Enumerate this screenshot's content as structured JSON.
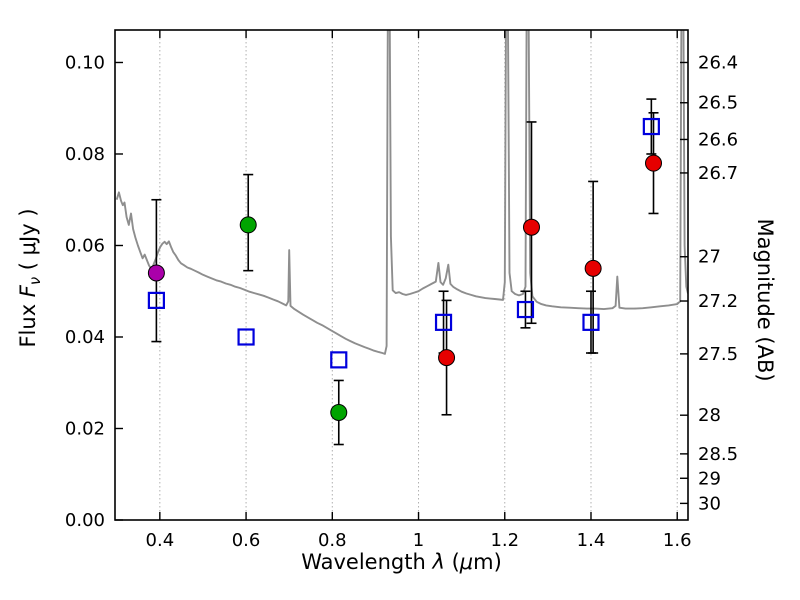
{
  "window": {
    "background": "#ffffff"
  },
  "chart_data": {
    "type": "line",
    "title": "",
    "xlabel_parts": {
      "prefix": "Wavelength  ",
      "lambda": "λ",
      "open": " (",
      "mu": "μ",
      "close": "m)"
    },
    "ylabel_left_parts": {
      "prefix": "Flux  ",
      "symbol": "F",
      "subscript": "ν",
      "suffix": "  ( μJy )"
    },
    "ylabel_right": "Magnitude (AB)",
    "mag_flux_zeropoint_ab": 23.9,
    "x_range": [
      0.296,
      1.625
    ],
    "y_range_flux": [
      0.0,
      0.1071
    ],
    "grid": {
      "vertical_dotted": true,
      "color": "#b0b0b0"
    },
    "axes_color": "#000000",
    "error_bar_color": "#000000",
    "x_ticks": [
      {
        "v": 0.4,
        "label": "0.4"
      },
      {
        "v": 0.6,
        "label": "0.6"
      },
      {
        "v": 0.8,
        "label": "0.8"
      },
      {
        "v": 1.0,
        "label": "1"
      },
      {
        "v": 1.2,
        "label": "1.2"
      },
      {
        "v": 1.4,
        "label": "1.4"
      },
      {
        "v": 1.6,
        "label": "1.6"
      }
    ],
    "y_ticks_flux": [
      {
        "v": 0.0,
        "label": "0.00"
      },
      {
        "v": 0.02,
        "label": "0.02"
      },
      {
        "v": 0.04,
        "label": "0.04"
      },
      {
        "v": 0.06,
        "label": "0.06"
      },
      {
        "v": 0.08,
        "label": "0.08"
      },
      {
        "v": 0.1,
        "label": "0.10"
      }
    ],
    "y_ticks_magnitude": [
      {
        "m": 26.4,
        "label": "26.4"
      },
      {
        "m": 26.5,
        "label": "26.5"
      },
      {
        "m": 26.6,
        "label": "26.6"
      },
      {
        "m": 26.7,
        "label": "26.7"
      },
      {
        "m": 27.0,
        "label": "27"
      },
      {
        "m": 27.2,
        "label": "27.2"
      },
      {
        "m": 27.5,
        "label": "27.5"
      },
      {
        "m": 28.0,
        "label": "28"
      },
      {
        "m": 28.5,
        "label": "28.5"
      },
      {
        "m": 29.0,
        "label": "29"
      },
      {
        "m": 30.0,
        "label": "30"
      }
    ],
    "series": [
      {
        "name": "model-spectrum",
        "type": "line",
        "color": "#8e8e8e",
        "points": [
          [
            0.3,
            0.07
          ],
          [
            0.305,
            0.0716
          ],
          [
            0.31,
            0.0698
          ],
          [
            0.314,
            0.0688
          ],
          [
            0.318,
            0.0694
          ],
          [
            0.323,
            0.0662
          ],
          [
            0.328,
            0.0645
          ],
          [
            0.333,
            0.067
          ],
          [
            0.338,
            0.0636
          ],
          [
            0.343,
            0.0618
          ],
          [
            0.349,
            0.06
          ],
          [
            0.355,
            0.0585
          ],
          [
            0.36,
            0.0572
          ],
          [
            0.365,
            0.058
          ],
          [
            0.37,
            0.0568
          ],
          [
            0.375,
            0.0556
          ],
          [
            0.381,
            0.0548
          ],
          [
            0.386,
            0.056
          ],
          [
            0.391,
            0.0572
          ],
          [
            0.396,
            0.0586
          ],
          [
            0.401,
            0.0597
          ],
          [
            0.406,
            0.0604
          ],
          [
            0.411,
            0.0608
          ],
          [
            0.416,
            0.0603
          ],
          [
            0.421,
            0.0609
          ],
          [
            0.426,
            0.0597
          ],
          [
            0.431,
            0.0586
          ],
          [
            0.437,
            0.0578
          ],
          [
            0.443,
            0.0568
          ],
          [
            0.449,
            0.0561
          ],
          [
            0.456,
            0.0557
          ],
          [
            0.464,
            0.0552
          ],
          [
            0.472,
            0.0549
          ],
          [
            0.481,
            0.0545
          ],
          [
            0.49,
            0.0541
          ],
          [
            0.5,
            0.0536
          ],
          [
            0.51,
            0.0532
          ],
          [
            0.52,
            0.0528
          ],
          [
            0.531,
            0.0524
          ],
          [
            0.542,
            0.0521
          ],
          [
            0.553,
            0.0517
          ],
          [
            0.564,
            0.0514
          ],
          [
            0.575,
            0.051
          ],
          [
            0.586,
            0.0507
          ],
          [
            0.597,
            0.0503
          ],
          [
            0.608,
            0.0499
          ],
          [
            0.619,
            0.0496
          ],
          [
            0.63,
            0.0493
          ],
          [
            0.641,
            0.049
          ],
          [
            0.652,
            0.0486
          ],
          [
            0.663,
            0.0482
          ],
          [
            0.674,
            0.0478
          ],
          [
            0.685,
            0.0473
          ],
          [
            0.693,
            0.0469
          ],
          [
            0.698,
            0.0478
          ],
          [
            0.7,
            0.059
          ],
          [
            0.703,
            0.0468
          ],
          [
            0.712,
            0.0461
          ],
          [
            0.722,
            0.0455
          ],
          [
            0.732,
            0.0449
          ],
          [
            0.743,
            0.0443
          ],
          [
            0.754,
            0.0437
          ],
          [
            0.765,
            0.0431
          ],
          [
            0.776,
            0.0426
          ],
          [
            0.787,
            0.042
          ],
          [
            0.798,
            0.0414
          ],
          [
            0.809,
            0.0408
          ],
          [
            0.82,
            0.0402
          ],
          [
            0.831,
            0.0396
          ],
          [
            0.842,
            0.0391
          ],
          [
            0.853,
            0.0386
          ],
          [
            0.864,
            0.0382
          ],
          [
            0.875,
            0.0378
          ],
          [
            0.886,
            0.0374
          ],
          [
            0.897,
            0.037
          ],
          [
            0.908,
            0.0367
          ],
          [
            0.916,
            0.0365
          ],
          [
            0.922,
            0.0363
          ],
          [
            0.926,
            0.038
          ],
          [
            0.929,
            0.115
          ],
          [
            0.933,
            0.115
          ],
          [
            0.936,
            0.062
          ],
          [
            0.94,
            0.0502
          ],
          [
            0.947,
            0.0496
          ],
          [
            0.955,
            0.0498
          ],
          [
            0.963,
            0.0494
          ],
          [
            0.971,
            0.0492
          ],
          [
            0.98,
            0.0494
          ],
          [
            0.99,
            0.0497
          ],
          [
            1.0,
            0.05
          ],
          [
            1.01,
            0.0506
          ],
          [
            1.02,
            0.0511
          ],
          [
            1.03,
            0.0516
          ],
          [
            1.04,
            0.0521
          ],
          [
            1.046,
            0.0562
          ],
          [
            1.051,
            0.052
          ],
          [
            1.057,
            0.0514
          ],
          [
            1.063,
            0.0528
          ],
          [
            1.069,
            0.0558
          ],
          [
            1.074,
            0.0516
          ],
          [
            1.081,
            0.0509
          ],
          [
            1.09,
            0.0504
          ],
          [
            1.1,
            0.0499
          ],
          [
            1.111,
            0.0495
          ],
          [
            1.122,
            0.0492
          ],
          [
            1.133,
            0.0489
          ],
          [
            1.144,
            0.0487
          ],
          [
            1.155,
            0.0485
          ],
          [
            1.166,
            0.0484
          ],
          [
            1.177,
            0.0483
          ],
          [
            1.188,
            0.0482
          ],
          [
            1.196,
            0.0481
          ],
          [
            1.2,
            0.052
          ],
          [
            1.203,
            0.115
          ],
          [
            1.207,
            0.115
          ],
          [
            1.211,
            0.054
          ],
          [
            1.216,
            0.05
          ],
          [
            1.224,
            0.0494
          ],
          [
            1.233,
            0.0491
          ],
          [
            1.242,
            0.0494
          ],
          [
            1.248,
            0.051
          ],
          [
            1.251,
            0.115
          ],
          [
            1.255,
            0.115
          ],
          [
            1.259,
            0.054
          ],
          [
            1.264,
            0.0489
          ],
          [
            1.274,
            0.0477
          ],
          [
            1.285,
            0.0472
          ],
          [
            1.296,
            0.0469
          ],
          [
            1.31,
            0.0467
          ],
          [
            1.33,
            0.0465
          ],
          [
            1.35,
            0.0464
          ],
          [
            1.37,
            0.0463
          ],
          [
            1.39,
            0.0462
          ],
          [
            1.41,
            0.0462
          ],
          [
            1.43,
            0.0461
          ],
          [
            1.45,
            0.0463
          ],
          [
            1.457,
            0.0468
          ],
          [
            1.461,
            0.0532
          ],
          [
            1.466,
            0.0464
          ],
          [
            1.48,
            0.0462
          ],
          [
            1.5,
            0.0462
          ],
          [
            1.52,
            0.0463
          ],
          [
            1.54,
            0.0465
          ],
          [
            1.56,
            0.0467
          ],
          [
            1.58,
            0.0469
          ],
          [
            1.6,
            0.0472
          ],
          [
            1.607,
            0.0478
          ],
          [
            1.61,
            0.115
          ],
          [
            1.614,
            0.115
          ],
          [
            1.617,
            0.06
          ],
          [
            1.621,
            0.051
          ],
          [
            1.625,
            0.0495
          ]
        ]
      },
      {
        "name": "magenta-circle-photometry",
        "type": "scatter",
        "marker": "circle",
        "color": "#aa00aa",
        "points": [
          {
            "x": 0.392,
            "y": 0.054,
            "ylo": 0.039,
            "yhi": 0.07
          }
        ]
      },
      {
        "name": "green-circle-photometry",
        "type": "scatter",
        "marker": "circle",
        "color": "#00a400",
        "points": [
          {
            "x": 0.605,
            "y": 0.0645,
            "ylo": 0.0545,
            "yhi": 0.0755
          },
          {
            "x": 0.815,
            "y": 0.0235,
            "ylo": 0.0165,
            "yhi": 0.0305
          }
        ]
      },
      {
        "name": "red-circle-photometry",
        "type": "scatter",
        "marker": "circle",
        "color": "#e60000",
        "points": [
          {
            "x": 1.065,
            "y": 0.0355,
            "ylo": 0.023,
            "yhi": 0.048
          },
          {
            "x": 1.262,
            "y": 0.064,
            "ylo": 0.043,
            "yhi": 0.087
          },
          {
            "x": 1.405,
            "y": 0.055,
            "ylo": 0.0365,
            "yhi": 0.074
          },
          {
            "x": 1.545,
            "y": 0.078,
            "ylo": 0.067,
            "yhi": 0.089
          }
        ]
      },
      {
        "name": "blue-open-square-photometry",
        "type": "scatter",
        "marker": "square-open",
        "color": "#0000dd",
        "points": [
          {
            "x": 0.392,
            "y": 0.048,
            "ylo": null,
            "yhi": null
          },
          {
            "x": 0.6,
            "y": 0.04,
            "ylo": null,
            "yhi": null
          },
          {
            "x": 0.815,
            "y": 0.035,
            "ylo": null,
            "yhi": null
          },
          {
            "x": 1.058,
            "y": 0.0432,
            "ylo": 0.0365,
            "yhi": 0.05
          },
          {
            "x": 1.248,
            "y": 0.046,
            "ylo": 0.042,
            "yhi": 0.05
          },
          {
            "x": 1.4,
            "y": 0.0432,
            "ylo": 0.0365,
            "yhi": 0.05
          },
          {
            "x": 1.54,
            "y": 0.086,
            "ylo": 0.08,
            "yhi": 0.092
          }
        ]
      }
    ]
  }
}
